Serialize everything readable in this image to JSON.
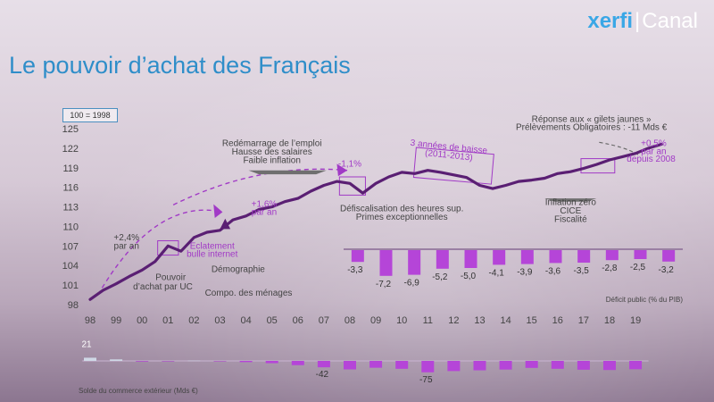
{
  "brand": {
    "left": "xerfi",
    "right": "Canal"
  },
  "title": "Le pouvoir d’achat des Français",
  "base_label": "100 = 1998",
  "colors": {
    "line": "#5a1f73",
    "accent": "#a13ac6",
    "bar": "#b545d8",
    "title": "#2f8ec9"
  },
  "chart_data": [
    {
      "type": "line",
      "title": "Le pouvoir d’achat des Français",
      "index_base": "100 = 1998",
      "x_labels": [
        "98",
        "99",
        "00",
        "01",
        "02",
        "03",
        "04",
        "05",
        "06",
        "07",
        "08",
        "09",
        "10",
        "11",
        "12",
        "13",
        "14",
        "15",
        "16",
        "17",
        "18",
        "19"
      ],
      "yticks": [
        98,
        101,
        104,
        107,
        110,
        113,
        116,
        119,
        122,
        125
      ],
      "ylim": [
        98,
        125
      ],
      "xlim": [
        1998,
        2020.2
      ],
      "series": [
        {
          "name": "Pouvoir d’achat par UC",
          "x": [
            1998,
            1998.5,
            1999,
            1999.5,
            2000,
            2000.5,
            2001,
            2001.5,
            2002,
            2002.5,
            2003,
            2003.5,
            2004,
            2004.5,
            2005,
            2005.5,
            2006,
            2006.5,
            2007,
            2007.5,
            2008,
            2008.5,
            2009,
            2009.5,
            2010,
            2010.5,
            2011,
            2011.5,
            2012,
            2012.5,
            2013,
            2013.5,
            2014,
            2014.5,
            2015,
            2015.5,
            2016,
            2016.5,
            2017,
            2017.5,
            2018,
            2018.5,
            2019,
            2019.5,
            2020
          ],
          "y": [
            98.8,
            100.2,
            101.2,
            102.3,
            103.3,
            104.6,
            107.0,
            106.2,
            108.3,
            109.1,
            109.4,
            111.0,
            111.6,
            112.6,
            113.0,
            113.8,
            114.3,
            115.4,
            116.3,
            116.9,
            116.6,
            115.1,
            116.6,
            117.6,
            118.3,
            118.1,
            118.6,
            118.3,
            117.9,
            117.5,
            116.3,
            115.8,
            116.3,
            116.9,
            117.1,
            117.4,
            118.1,
            118.4,
            118.9,
            119.5,
            120.2,
            120.7,
            121.2,
            122.0,
            122.6
          ]
        }
      ],
      "annotations": [
        {
          "text": "+2,4%",
          "x": 1999.4,
          "y": 107.9
        },
        {
          "text": "par an",
          "x": 1999.4,
          "y": 106.6
        },
        {
          "text": "Pouvoir",
          "x": 2001.1,
          "y": 101.8
        },
        {
          "text": "d’achat par UC",
          "x": 2000.8,
          "y": 100.3
        },
        {
          "text": "Eclatement",
          "x": 2002.7,
          "y": 106.6
        },
        {
          "text": "bulle internet",
          "x": 2002.7,
          "y": 105.3
        },
        {
          "text": "Démographie",
          "x": 2003.7,
          "y": 103.0
        },
        {
          "text": "Compo. des ménages",
          "x": 2004.1,
          "y": 99.4
        },
        {
          "text": "+1,6%",
          "x": 2004.7,
          "y": 113.0
        },
        {
          "text": "par an",
          "x": 2004.7,
          "y": 111.8
        },
        {
          "text": "Redémarrage de l’emploi",
          "x": 2005.0,
          "y": 122.3
        },
        {
          "text": "Hausse des salaires",
          "x": 2005.0,
          "y": 121.0
        },
        {
          "text": "Faible inflation",
          "x": 2005.0,
          "y": 119.7
        },
        {
          "text": "-1,1%",
          "x": 2008.0,
          "y": 119.2
        },
        {
          "text": "Défiscalisation des heures sup.",
          "x": 2010.0,
          "y": 112.3
        },
        {
          "text": "Primes exceptionnelles",
          "x": 2010.0,
          "y": 111.0
        },
        {
          "text": "3 années de baisse",
          "x": 2011.8,
          "y": 121.8
        },
        {
          "text": "(2011-2013)",
          "x": 2011.8,
          "y": 120.5
        },
        {
          "text": "Inflation zéro",
          "x": 2016.5,
          "y": 113.3
        },
        {
          "text": "CICE",
          "x": 2016.5,
          "y": 112.0
        },
        {
          "text": "Fiscalité",
          "x": 2016.5,
          "y": 110.7
        },
        {
          "text": "Réponse aux « gilets jaunes »",
          "x": 2017.3,
          "y": 126.0
        },
        {
          "text": "Prélèvements Obligatoires : -11 Mds €",
          "x": 2017.3,
          "y": 124.8
        },
        {
          "text": "+0,5%",
          "x": 2019.7,
          "y": 122.3
        },
        {
          "text": "par an",
          "x": 2019.7,
          "y": 121.1
        },
        {
          "text": "depuis 2008",
          "x": 2019.6,
          "y": 119.9
        }
      ]
    },
    {
      "type": "bar",
      "title": "Déficit public (% du PIB)",
      "categories": [
        "08",
        "09",
        "10",
        "11",
        "12",
        "13",
        "14",
        "15",
        "16",
        "17",
        "18",
        "19"
      ],
      "values": [
        -3.3,
        -7.2,
        -6.9,
        -5.2,
        -5.0,
        -4.1,
        -3.9,
        -3.6,
        -3.5,
        -2.8,
        -2.5,
        -3.2
      ],
      "labels": [
        "-3,3",
        "-7,2",
        "-6,9",
        "-5,2",
        "-5,0",
        "-4,1",
        "-3,9",
        "-3,6",
        "-3,5",
        "-2,8",
        "-2,5",
        "-3,2"
      ],
      "ylim": [
        -8,
        0
      ]
    },
    {
      "type": "bar",
      "title": "Solde du commerce extérieur (Mds €)",
      "x": [
        1998,
        1999,
        2000,
        2001,
        2002,
        2003,
        2004,
        2005,
        2006,
        2007,
        2008,
        2009,
        2010,
        2011,
        2012,
        2013,
        2014,
        2015,
        2016,
        2017,
        2018,
        2019
      ],
      "values": [
        21,
        10,
        -4,
        -3,
        2,
        -3,
        -8,
        -15,
        -28,
        -42,
        -56,
        -45,
        -52,
        -75,
        -67,
        -62,
        -57,
        -46,
        -52,
        -58,
        -60,
        -55
      ],
      "shown_labels": {
        "1998": "21",
        "2007": "-42",
        "2011": "-75"
      },
      "ylim": [
        -80,
        25
      ]
    }
  ]
}
